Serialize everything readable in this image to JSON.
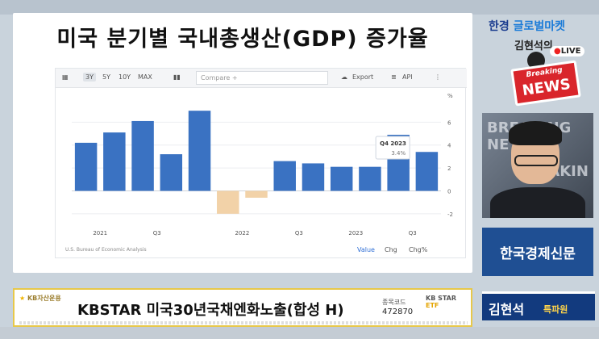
{
  "title": "미국 분기별 국내총생산(GDP) 증가율",
  "toolbar": {
    "ranges": [
      "3Y",
      "5Y",
      "10Y",
      "MAX"
    ],
    "selected_range": "3Y",
    "compare_placeholder": "Compare +",
    "export_label": "Export",
    "api_label": "API",
    "more": "⋮"
  },
  "chart_data": {
    "type": "bar",
    "y_unit": "%",
    "ylim": [
      -3,
      8
    ],
    "yticks": [
      -2,
      0,
      2,
      4,
      6
    ],
    "x_tick_labels": [
      "2021",
      "Q3",
      "2022",
      "Q3",
      "2023",
      "Q3"
    ],
    "values": [
      4.2,
      5.1,
      6.1,
      3.2,
      7.0,
      -2.0,
      -0.6,
      2.6,
      2.4,
      2.1,
      2.1,
      4.9,
      3.4
    ],
    "highlight_index": 11,
    "tooltip": {
      "label": "Q4 2023",
      "value": "3.4%"
    },
    "bar_color": "#3a72c2",
    "negative_color": "#f2d2a8",
    "grid": true
  },
  "source": "U.S. Bureau of Economic Analysis",
  "footer_tabs": [
    "Value",
    "Chg",
    "Chg%"
  ],
  "footer_selected": "Value",
  "brand": {
    "part1": "한경",
    "part2": "글로벌마켓"
  },
  "host_script": "김현석의",
  "live": "LIVE",
  "badge": {
    "line1": "Breaking",
    "line2": "NEWS"
  },
  "video_bg_text": [
    "BREAKING NE",
    "EAKIN"
  ],
  "newspaper": "한국경제신문",
  "reporter": {
    "name": "김현석",
    "role": "특파원"
  },
  "ticker": {
    "logo": "KB자산운용",
    "product": "KBSTAR 미국30년국채엔화노출(합성 H)",
    "code_label": "종목코드",
    "code": "472870",
    "brand": "KB STAR",
    "etf": "ETF"
  },
  "colors": {
    "accent": "#1a3c8f",
    "news_red": "#d9252b",
    "ticker_border": "#e7c84a"
  }
}
